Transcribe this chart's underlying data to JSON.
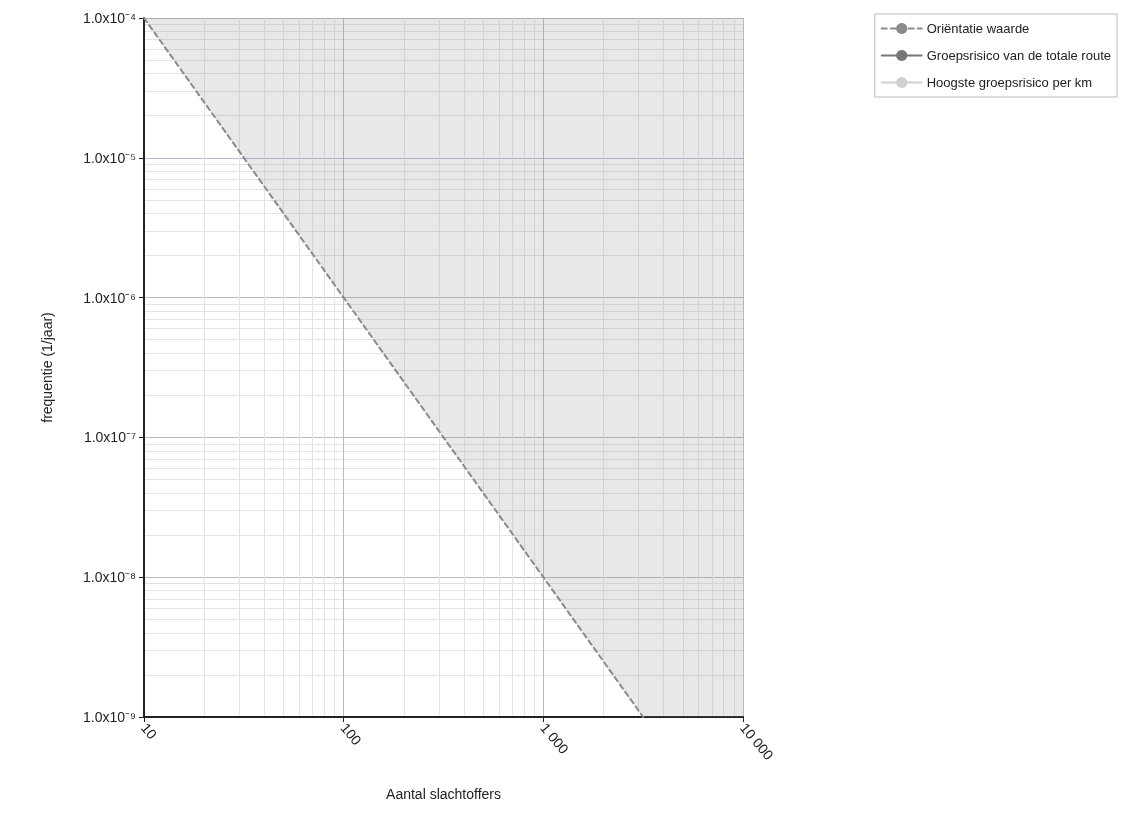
{
  "chart_data": {
    "type": "line",
    "xlabel": "Aantal slachtoffers",
    "ylabel": "frequentie (1/jaar)",
    "log": "xy",
    "grid": true,
    "legend": "top right",
    "marker": "none",
    "xlim": [
      10,
      10000
    ],
    "xticks": [
      10,
      100,
      {
        "value": 1000,
        "label": "1 000"
      },
      {
        "value": 10000,
        "label": "10 000"
      }
    ],
    "ylim": [
      1e-09,
      0.0001
    ],
    "yticks": [
      {
        "value": 1e-09,
        "label": "1.0x10⁻⁹"
      },
      {
        "value": 1e-08,
        "label": "1.0x10⁻⁸"
      },
      {
        "value": 1e-07,
        "label": "1.0x10⁻⁷"
      },
      {
        "value": 1e-06,
        "label": "1.0x10⁻⁶"
      },
      {
        "value": 1e-05,
        "label": "1.0x10⁻⁵"
      },
      {
        "value": 0.0001,
        "label": "1.0x10⁻⁴"
      }
    ],
    "series": [
      {
        "name": "Oriëntatie waarde",
        "color": "#8a8a8a",
        "line_style": "dashed",
        "x": [
          10,
          100,
          1000,
          3162,
          10000
        ],
        "values": [
          0.0001,
          1e-06,
          1e-08,
          1e-09,
          null
        ],
        "lower": [
          0.0001,
          1e-06,
          1e-08,
          1e-09,
          1e-09
        ],
        "upper": [
          0.0001,
          0.0001,
          0.0001,
          0.0001,
          0.0001
        ]
      },
      {
        "name": "Groepsrisico van de totale route",
        "color": "#777777",
        "line_style": "solid"
      },
      {
        "name": "Hoogste groepsrisico per km",
        "color": "#d0d0d0",
        "line_style": "solid"
      }
    ]
  }
}
